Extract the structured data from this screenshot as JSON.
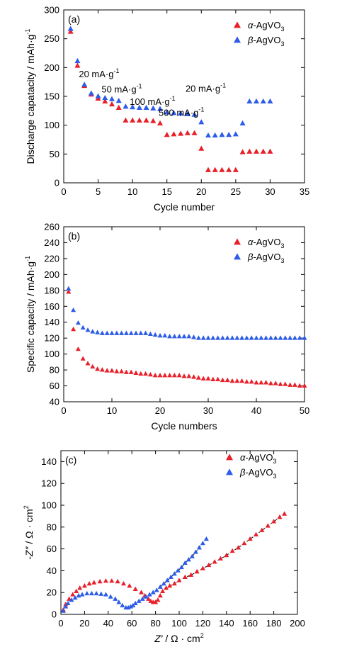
{
  "chart_data": [
    {
      "type": "scatter",
      "panel_label": "(a)",
      "xlabel": "Cycle number",
      "ylabel": "Discharge capatacity / mAh·g⁻¹",
      "xlim": [
        0,
        35
      ],
      "ylim": [
        0,
        300
      ],
      "xticks": [
        0,
        5,
        10,
        15,
        20,
        25,
        30,
        35
      ],
      "yticks": [
        0,
        50,
        100,
        150,
        200,
        250,
        300
      ],
      "legend_position": "top-right",
      "legend": [
        "α-AgVO3",
        "β-AgVO3"
      ],
      "annotations": [
        {
          "text": "20 mA·g⁻¹",
          "x": 2.2,
          "y": 183
        },
        {
          "text": "50 mA·g⁻¹",
          "x": 5.5,
          "y": 157
        },
        {
          "text": "100 mA·g⁻¹",
          "x": 9.6,
          "y": 135
        },
        {
          "text": "500 mA·g⁻¹",
          "x": 13.8,
          "y": 116
        },
        {
          "text": "20 mA·g⁻¹",
          "x": 17.7,
          "y": 158
        }
      ],
      "series": [
        {
          "name": "α-AgVO3",
          "color": "#e8202a",
          "x": [
            1,
            2,
            3,
            4,
            5,
            6,
            7,
            8,
            9,
            10,
            11,
            12,
            13,
            14,
            15,
            16,
            17,
            18,
            19,
            20,
            21,
            22,
            23,
            24,
            25,
            26,
            27,
            28,
            29,
            30
          ],
          "y": [
            262,
            203,
            168,
            153,
            146,
            141,
            136,
            130,
            108,
            108,
            108,
            108,
            107,
            103,
            83,
            84,
            85,
            86,
            86,
            59,
            22,
            22,
            22,
            22,
            22,
            53,
            54,
            54,
            54,
            54
          ]
        },
        {
          "name": "β-AgVO3",
          "color": "#2c5ce8",
          "x": [
            1,
            2,
            3,
            4,
            5,
            6,
            7,
            8,
            9,
            10,
            11,
            12,
            13,
            14,
            15,
            16,
            17,
            18,
            19,
            20,
            21,
            22,
            23,
            24,
            25,
            26,
            27,
            28,
            29,
            30
          ],
          "y": [
            267,
            211,
            170,
            155,
            150,
            147,
            145,
            142,
            132,
            131,
            130,
            130,
            129,
            128,
            122,
            121,
            120,
            119,
            118,
            105,
            82,
            82,
            83,
            83,
            84,
            103,
            141,
            141,
            141,
            141
          ]
        }
      ]
    },
    {
      "type": "scatter",
      "panel_label": "(b)",
      "xlabel": "Cycle numbers",
      "ylabel": "Specific capacity / mAh·g⁻¹",
      "xlim": [
        0,
        50
      ],
      "ylim": [
        40,
        260
      ],
      "xticks": [
        0,
        10,
        20,
        30,
        40,
        50
      ],
      "yticks": [
        40,
        60,
        80,
        100,
        120,
        140,
        160,
        180,
        200,
        220,
        240,
        260
      ],
      "legend_position": "top-right",
      "legend": [
        "α-AgVO3",
        "β-AgVO3"
      ],
      "series": [
        {
          "name": "α-AgVO3",
          "color": "#e8202a",
          "x": [
            1,
            2,
            3,
            4,
            5,
            6,
            7,
            8,
            9,
            10,
            11,
            12,
            13,
            14,
            15,
            16,
            17,
            18,
            19,
            20,
            21,
            22,
            23,
            24,
            25,
            26,
            27,
            28,
            29,
            30,
            31,
            32,
            33,
            34,
            35,
            36,
            37,
            38,
            39,
            40,
            41,
            42,
            43,
            44,
            45,
            46,
            47,
            48,
            49,
            50
          ],
          "y": [
            178,
            131,
            106,
            94,
            88,
            84,
            81,
            80,
            79,
            79,
            78,
            78,
            77,
            77,
            76,
            75,
            75,
            74,
            73,
            73,
            73,
            73,
            73,
            73,
            72,
            72,
            71,
            70,
            69,
            69,
            68,
            68,
            67,
            67,
            66,
            66,
            66,
            65,
            65,
            64,
            64,
            64,
            63,
            63,
            62,
            62,
            61,
            61,
            60,
            60
          ]
        },
        {
          "name": "β-AgVO3",
          "color": "#2c5ce8",
          "x": [
            1,
            2,
            3,
            4,
            5,
            6,
            7,
            8,
            9,
            10,
            11,
            12,
            13,
            14,
            15,
            16,
            17,
            18,
            19,
            20,
            21,
            22,
            23,
            24,
            25,
            26,
            27,
            28,
            29,
            30,
            31,
            32,
            33,
            34,
            35,
            36,
            37,
            38,
            39,
            40,
            41,
            42,
            43,
            44,
            45,
            46,
            47,
            48,
            49,
            50
          ],
          "y": [
            182,
            155,
            139,
            133,
            130,
            128,
            127,
            126,
            126,
            126,
            126,
            126,
            126,
            126,
            126,
            126,
            126,
            125,
            124,
            123,
            123,
            122,
            122,
            122,
            122,
            122,
            121,
            120,
            120,
            120,
            120,
            120,
            120,
            120,
            120,
            120,
            120,
            120,
            120,
            120,
            120,
            120,
            120,
            120,
            120,
            120,
            120,
            120,
            120,
            120
          ]
        }
      ]
    },
    {
      "type": "scatter",
      "panel_label": "(c)",
      "xlabel": "Z′ / Ω·cm²",
      "ylabel": "-Z″ / Ω·cm²",
      "xlim": [
        0,
        200
      ],
      "ylim": [
        0,
        150
      ],
      "xticks": [
        0,
        20,
        40,
        60,
        80,
        100,
        120,
        140,
        160,
        180,
        200
      ],
      "yticks": [
        0,
        20,
        40,
        60,
        80,
        100,
        120,
        140
      ],
      "legend_position": "top-right",
      "legend": [
        "α-AgVO3",
        "β-AgVO3"
      ],
      "series": [
        {
          "name": "α-AgVO3",
          "color": "#e8202a",
          "x": [
            2,
            4,
            7,
            10,
            13,
            16,
            20,
            24,
            28,
            33,
            38,
            43,
            48,
            53,
            58,
            63,
            68,
            71,
            74,
            76,
            78,
            80,
            82,
            84,
            86,
            89,
            92,
            96,
            100,
            105,
            110,
            115,
            120,
            125,
            130,
            135,
            140,
            145,
            150,
            155,
            160,
            165,
            170,
            175,
            180,
            185,
            189
          ],
          "y": [
            4,
            9,
            14,
            18,
            21,
            24,
            26,
            28,
            29,
            30,
            30.5,
            30.5,
            30,
            28,
            26,
            23,
            20,
            17,
            14,
            12,
            11,
            11,
            13,
            17,
            21,
            24,
            26,
            28,
            31,
            34,
            36,
            39,
            42,
            45,
            48,
            51,
            54,
            58,
            61,
            65,
            69,
            73,
            77,
            81,
            85,
            89,
            92
          ]
        },
        {
          "name": "β-AgVO3",
          "color": "#2c5ce8",
          "x": [
            2,
            4,
            6,
            9,
            12,
            15,
            18,
            22,
            26,
            30,
            34,
            38,
            42,
            46,
            49,
            52,
            55,
            57,
            59,
            61,
            63,
            66,
            69,
            72,
            75,
            78,
            81,
            84,
            87,
            90,
            93,
            96,
            99,
            102,
            105,
            108,
            111,
            114,
            117,
            120,
            123
          ],
          "y": [
            3,
            7,
            10,
            13,
            15,
            17,
            18,
            19,
            19,
            19,
            18.5,
            18,
            16,
            14,
            11,
            8,
            6,
            6,
            7,
            8,
            10,
            12,
            14,
            16,
            18,
            20,
            22,
            25,
            28,
            31,
            34,
            37,
            40,
            43,
            47,
            50,
            53,
            57,
            61,
            65,
            69
          ]
        }
      ]
    }
  ]
}
